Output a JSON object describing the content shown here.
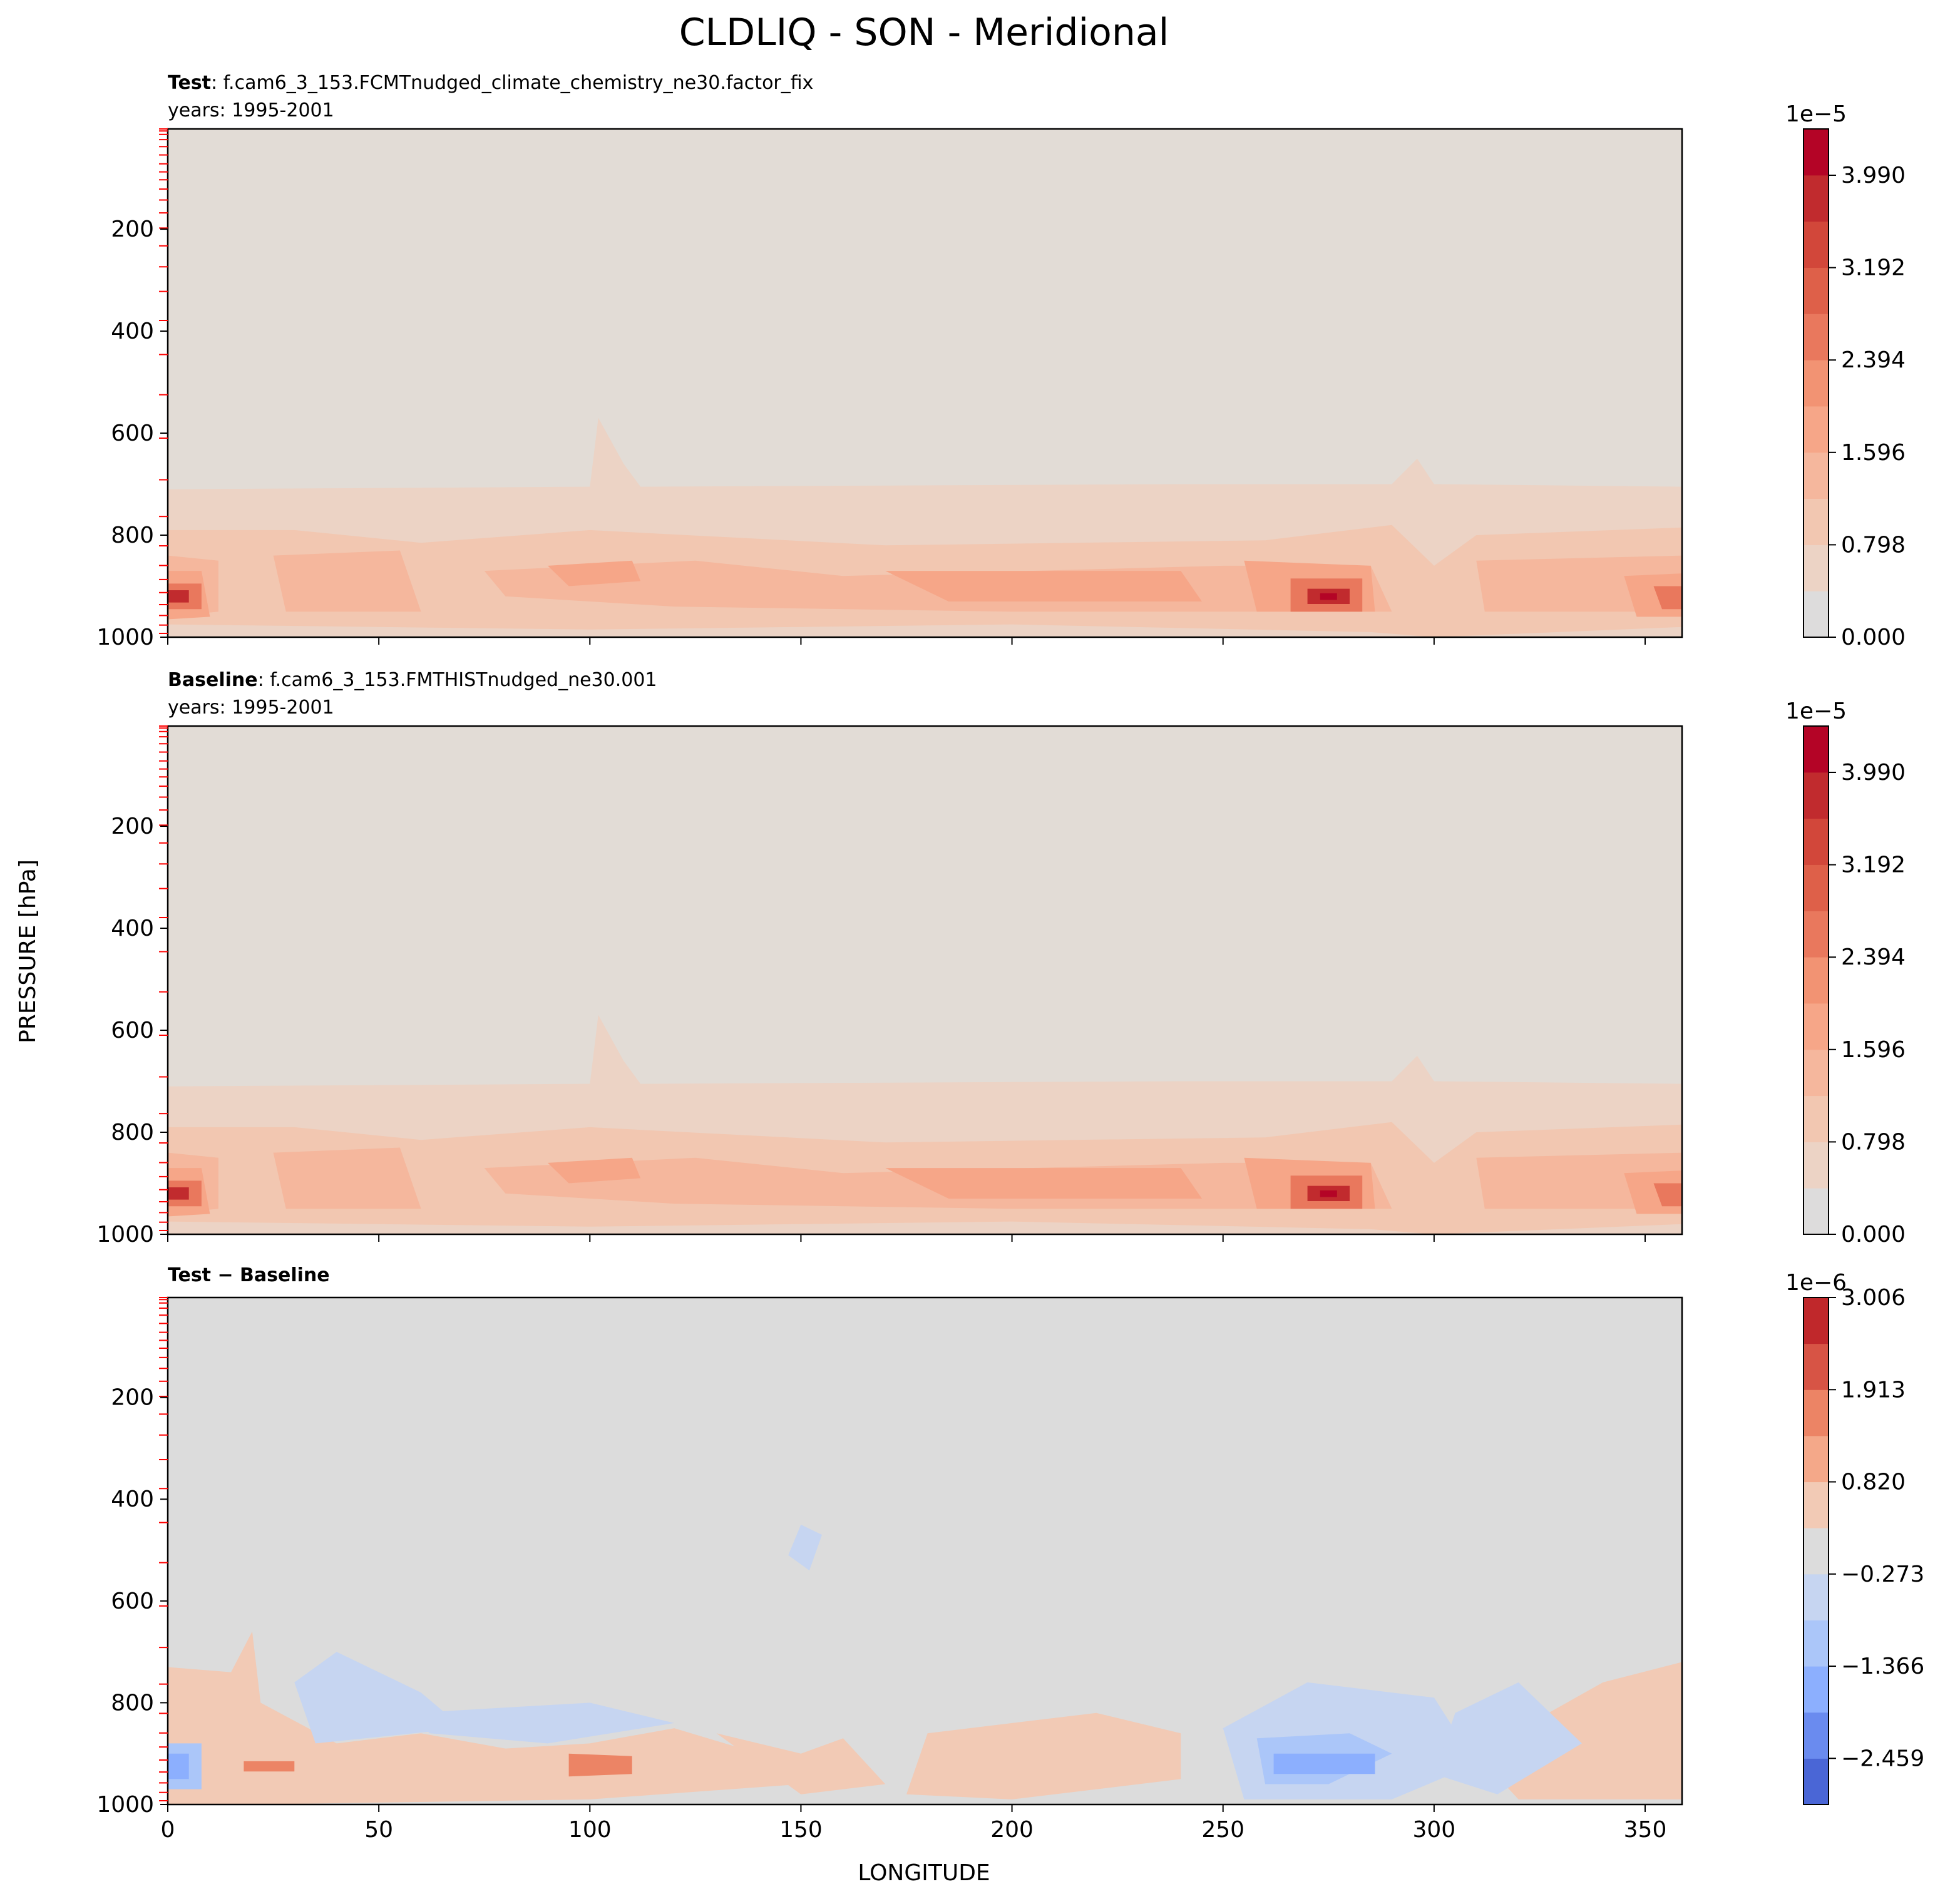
{
  "figure": {
    "title": "CLDLIQ - SON - Meridional",
    "ylabel": "PRESSURE [hPa]",
    "xlabel": "LONGITUDE"
  },
  "chart_data": [
    {
      "type": "contour",
      "panel": "test",
      "label_bold": "Test",
      "label_text": ": f.cam6_3_153.FCMTnudged_climate_chemistry_ne30.factor_fix",
      "years": "years: 1995-2001",
      "xlim": [
        0,
        358.75
      ],
      "ylim": [
        1000,
        3.6
      ],
      "x_ticks": [
        0,
        50,
        100,
        150,
        200,
        250,
        300,
        350
      ],
      "y_ticks": [
        200,
        400,
        600,
        800,
        1000
      ],
      "colorbar": {
        "exponent": "1e−5",
        "ticks": [
          0.0,
          0.798,
          1.596,
          2.394,
          3.192,
          3.99
        ],
        "tick_labels": [
          "0.000",
          "0.798",
          "1.596",
          "2.394",
          "3.192",
          "3.990"
        ],
        "vmin": 0,
        "vmax": 4.39,
        "levels": 11,
        "colors": [
          "#dddcdc",
          "#ecd3c5",
          "#f2c7b1",
          "#f5b79d",
          "#f6a688",
          "#f29373",
          "#e9785d",
          "#de6049",
          "#d2473a",
          "#c12b2e",
          "#b40426"
        ]
      },
      "contour_fill": {
        "band_colors": [
          "#e2dcd6",
          "#ecd3c5",
          "#f2c7b1",
          "#f5b79d",
          "#f6a688",
          "#e9785d",
          "#c12b2e",
          "#b40426"
        ]
      }
    },
    {
      "type": "contour",
      "panel": "baseline",
      "label_bold": "Baseline",
      "label_text": ": f.cam6_3_153.FMTHISTnudged_ne30.001",
      "years": "years: 1995-2001",
      "xlim": [
        0,
        358.75
      ],
      "ylim": [
        1000,
        3.6
      ],
      "x_ticks": [
        0,
        50,
        100,
        150,
        200,
        250,
        300,
        350
      ],
      "y_ticks": [
        200,
        400,
        600,
        800,
        1000
      ],
      "colorbar": {
        "exponent": "1e−5",
        "ticks": [
          0.0,
          0.798,
          1.596,
          2.394,
          3.192,
          3.99
        ],
        "tick_labels": [
          "0.000",
          "0.798",
          "1.596",
          "2.394",
          "3.192",
          "3.990"
        ],
        "vmin": 0,
        "vmax": 4.39,
        "levels": 11,
        "colors": [
          "#dddcdc",
          "#ecd3c5",
          "#f2c7b1",
          "#f5b79d",
          "#f6a688",
          "#f29373",
          "#e9785d",
          "#de6049",
          "#d2473a",
          "#c12b2e",
          "#b40426"
        ]
      },
      "contour_fill": {
        "band_colors": [
          "#e2dcd6",
          "#ecd3c5",
          "#f2c7b1",
          "#f5b79d",
          "#f6a688",
          "#e9785d",
          "#c12b2e",
          "#b40426"
        ]
      }
    },
    {
      "type": "contour",
      "panel": "diff",
      "label_bold": "Test − Baseline",
      "label_text": "",
      "years": "",
      "xlim": [
        0,
        358.75
      ],
      "ylim": [
        1000,
        3.6
      ],
      "x_ticks": [
        0,
        50,
        100,
        150,
        200,
        250,
        300,
        350
      ],
      "y_ticks": [
        200,
        400,
        600,
        800,
        1000
      ],
      "colorbar": {
        "exponent": "1e−6",
        "ticks": [
          -2.459,
          -1.366,
          -0.273,
          0.82,
          1.913,
          3.006
        ],
        "tick_labels": [
          "−2.459",
          "−1.366",
          "−0.273",
          "0.820",
          "1.913",
          "3.006"
        ],
        "vmin": -3.006,
        "vmax": 3.006,
        "levels": 11,
        "colors": [
          "#4a66d6",
          "#6a8bef",
          "#8caffe",
          "#abc6f9",
          "#c6d5f1",
          "#dcdcdc",
          "#f2cab5",
          "#f4a889",
          "#ec8465",
          "#d75445",
          "#c0282b"
        ]
      },
      "contour_fill": {
        "band_colors": [
          "#dcdcdc",
          "#c6d5f1",
          "#abc6f9",
          "#8caffe",
          "#4a66d6",
          "#f2cab5",
          "#ec8465"
        ]
      }
    }
  ]
}
